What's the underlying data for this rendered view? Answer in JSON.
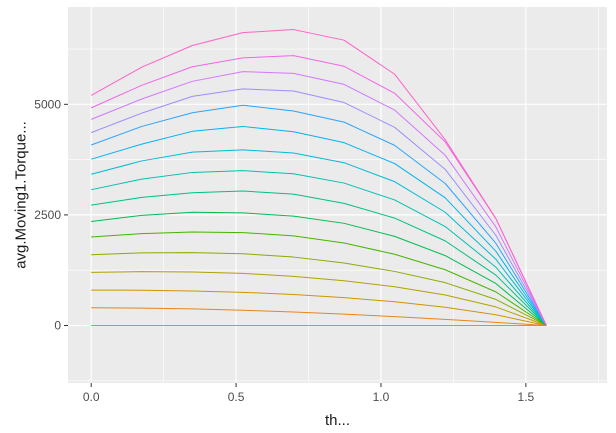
{
  "chart_data": {
    "type": "line",
    "title": "",
    "xlabel": "th...",
    "ylabel": "avg.Moving1.Torque...",
    "xlim": [
      -0.08,
      1.78
    ],
    "ylim": [
      -1300,
      7200
    ],
    "x_ticks": [
      {
        "value": 0.0,
        "label": "0.0"
      },
      {
        "value": 0.5,
        "label": "0.5"
      },
      {
        "value": 1.0,
        "label": "1.0"
      },
      {
        "value": 1.5,
        "label": "1.5"
      }
    ],
    "y_ticks": [
      {
        "value": 0,
        "label": "0"
      },
      {
        "value": 2500,
        "label": "2500"
      },
      {
        "value": 5000,
        "label": "5000"
      }
    ],
    "x_minor_ticks": [
      0.25,
      0.75,
      1.25,
      1.75
    ],
    "y_minor_ticks": [
      -1250,
      1250,
      3750,
      6250
    ],
    "grid": true,
    "background": "#ebebeb",
    "grid_color": "#ffffff",
    "x": [
      0.0,
      0.1745,
      0.3491,
      0.5236,
      0.6981,
      0.8727,
      1.0472,
      1.2217,
      1.3963,
      1.5708
    ],
    "series": [
      {
        "color": "#f8766d",
        "values": [
          0,
          0,
          0,
          0,
          0,
          0,
          0,
          0,
          0,
          0
        ]
      },
      {
        "color": "#e7851e",
        "values": [
          400,
          394,
          376,
          346,
          306,
          257,
          200,
          137,
          70,
          0
        ]
      },
      {
        "color": "#d09400",
        "values": [
          800,
          798,
          781,
          750,
          700,
          630,
          536,
          413,
          243,
          0
        ]
      },
      {
        "color": "#b2a100",
        "values": [
          1200,
          1218,
          1210,
          1178,
          1110,
          1011,
          876,
          690,
          420,
          0
        ]
      },
      {
        "color": "#89ac00",
        "values": [
          1600,
          1642,
          1648,
          1622,
          1547,
          1412,
          1222,
          968,
          590,
          0
        ]
      },
      {
        "color": "#45b500",
        "values": [
          2000,
          2078,
          2113,
          2100,
          2027,
          1864,
          1611,
          1260,
          760,
          0
        ]
      },
      {
        "color": "#00bc51",
        "values": [
          2350,
          2490,
          2560,
          2545,
          2473,
          2310,
          2015,
          1580,
          950,
          0
        ]
      },
      {
        "color": "#00c087",
        "values": [
          2720,
          2895,
          3000,
          3040,
          2970,
          2760,
          2428,
          1913,
          1140,
          0
        ]
      },
      {
        "color": "#00c0b2",
        "values": [
          3070,
          3310,
          3460,
          3500,
          3430,
          3220,
          2838,
          2237,
          1320,
          0
        ]
      },
      {
        "color": "#00bcd6",
        "values": [
          3420,
          3720,
          3920,
          3970,
          3900,
          3680,
          3252,
          2560,
          1500,
          0
        ]
      },
      {
        "color": "#00b3f2",
        "values": [
          3760,
          4100,
          4390,
          4500,
          4380,
          4133,
          3660,
          2887,
          1680,
          0
        ]
      },
      {
        "color": "#29a3ff",
        "values": [
          4080,
          4500,
          4810,
          4980,
          4850,
          4597,
          4072,
          3210,
          1860,
          0
        ]
      },
      {
        "color": "#9c8dff",
        "values": [
          4360,
          4800,
          5180,
          5350,
          5300,
          5040,
          4480,
          3530,
          2040,
          0
        ]
      },
      {
        "color": "#d277ff",
        "values": [
          4660,
          5120,
          5520,
          5740,
          5700,
          5450,
          4870,
          3850,
          2230,
          0
        ]
      },
      {
        "color": "#f166e8",
        "values": [
          4920,
          5430,
          5850,
          6050,
          6100,
          5860,
          5250,
          4150,
          2420,
          0
        ]
      },
      {
        "color": "#ff61c7",
        "values": [
          5200,
          5840,
          6330,
          6620,
          6690,
          6450,
          5680,
          4200,
          2420,
          0
        ]
      }
    ]
  }
}
